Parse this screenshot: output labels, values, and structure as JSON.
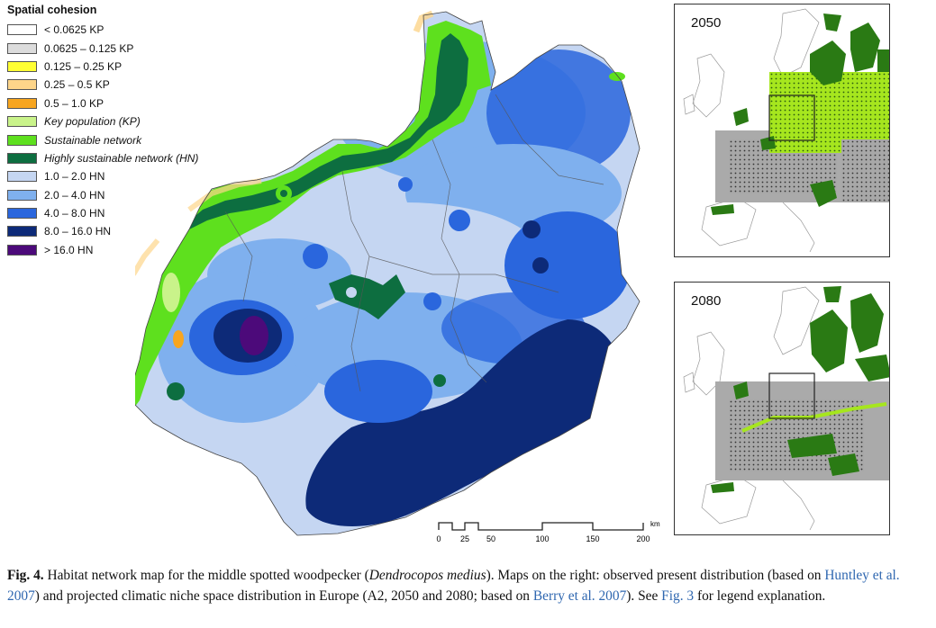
{
  "legend": {
    "title": "Spatial cohesion",
    "items": [
      {
        "label": "< 0.0625 KP",
        "color": "#ffffff",
        "italic": false
      },
      {
        "label": "0.0625 – 0.125 KP",
        "color": "#dcdcdc",
        "italic": false
      },
      {
        "label": "0.125 – 0.25 KP",
        "color": "#ffff33",
        "italic": false
      },
      {
        "label": "0.25 – 0.5 KP",
        "color": "#fdd58a",
        "italic": false
      },
      {
        "label": "0.5 – 1.0 KP",
        "color": "#f7a51f",
        "italic": false
      },
      {
        "label": "Key population (KP)",
        "color": "#c9f38a",
        "italic": true
      },
      {
        "label": "Sustainable network",
        "color": "#5ee01e",
        "italic": true
      },
      {
        "label": "Highly sustainable network (HN)",
        "color": "#0d6e40",
        "italic": true
      },
      {
        "label": "1.0 – 2.0 HN",
        "color": "#c5d6f2",
        "italic": false
      },
      {
        "label": "2.0 – 4.0 HN",
        "color": "#7fb0ee",
        "italic": false
      },
      {
        "label": "4.0 – 8.0 HN",
        "color": "#2a66dd",
        "italic": false
      },
      {
        "label": "8.0 – 16.0 HN",
        "color": "#0d2a78",
        "italic": false
      },
      {
        "label": "> 16.0 HN",
        "color": "#4c0a7a",
        "italic": false
      }
    ]
  },
  "insets": [
    {
      "year": "2050"
    },
    {
      "year": "2080"
    }
  ],
  "scale": {
    "unit": "km",
    "ticks": [
      "0",
      "25",
      "50",
      "100",
      "150",
      "200"
    ]
  },
  "caption": {
    "fig_label": "Fig. 4.",
    "part1": " Habitat network map for the middle spotted woodpecker (",
    "species": "Dendrocopos medius",
    "part2": "). Maps on the right: observed present distribution (based on ",
    "ref1": "Huntley et al. 2007",
    "part3": ") and projected climatic niche space distribution in Europe (A2, 2050 and 2080; based on ",
    "ref2": "Berry et al. 2007",
    "part4": "). See ",
    "ref3": "Fig. 3",
    "part5": " for legend explanation."
  }
}
